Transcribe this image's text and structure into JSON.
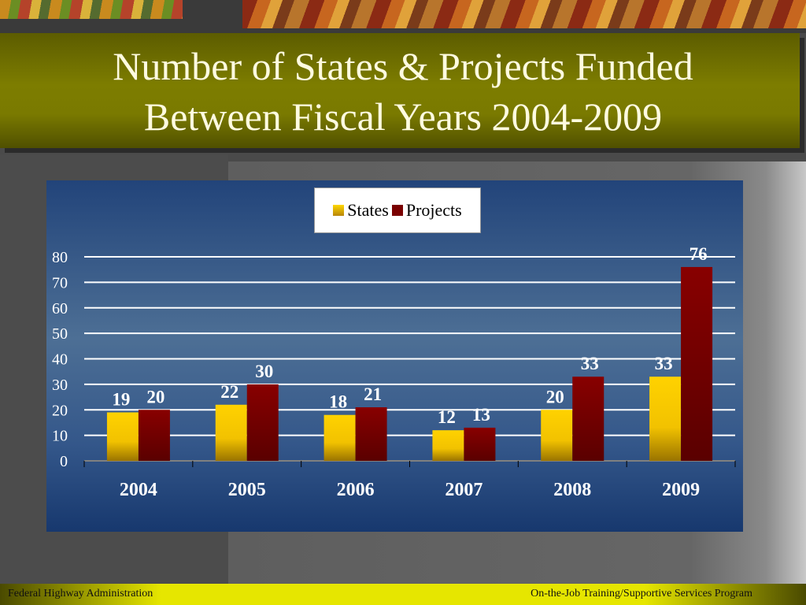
{
  "slide": {
    "title_line1": "Number of States & Projects Funded",
    "title_line2": "Between Fiscal Years 2004-2009",
    "footer_left": "Federal Highway Administration",
    "footer_right": "On-the-Job Training/Supportive Services Program"
  },
  "chart_data": {
    "type": "bar",
    "categories": [
      "2004",
      "2005",
      "2006",
      "2007",
      "2008",
      "2009"
    ],
    "series": [
      {
        "name": "States",
        "values": [
          19,
          22,
          18,
          12,
          20,
          33
        ],
        "color": "#e5b400"
      },
      {
        "name": "Projects",
        "values": [
          20,
          30,
          21,
          13,
          33,
          76
        ],
        "color": "#7a0000"
      }
    ],
    "title": "",
    "xlabel": "",
    "ylabel": "",
    "ylim": [
      0,
      80
    ],
    "yticks": [
      0,
      10,
      20,
      30,
      40,
      50,
      60,
      70,
      80
    ],
    "grid": true,
    "legend_position": "top-center",
    "data_labels": true
  }
}
